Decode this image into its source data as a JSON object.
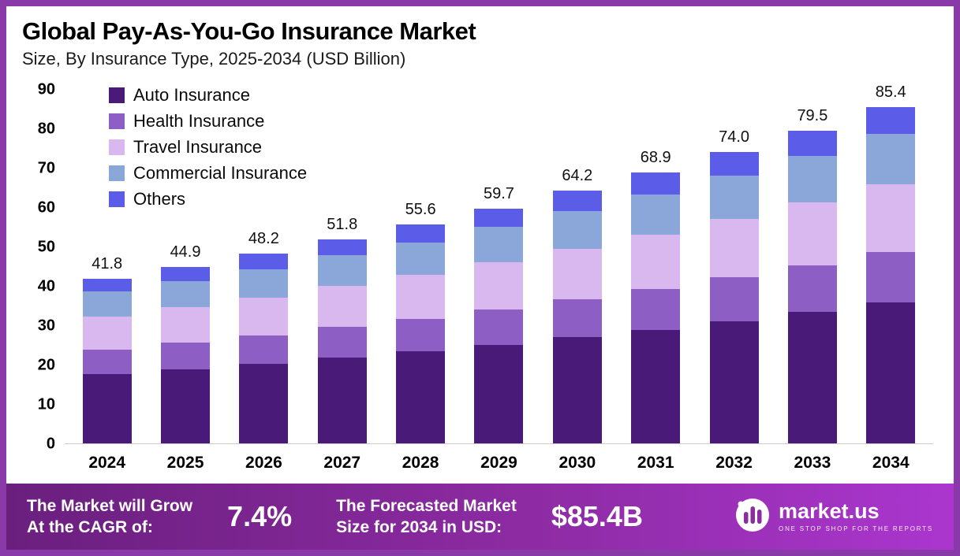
{
  "header": {
    "title": "Global Pay-As-You-Go Insurance Market",
    "subtitle": "Size, By Insurance Type, 2025-2034 (USD Billion)"
  },
  "chart_data": {
    "type": "bar",
    "stacked": true,
    "title": "Global Pay-As-You-Go Insurance Market Size, By Insurance Type, 2025-2034 (USD Billion)",
    "categories": [
      "2024",
      "2025",
      "2026",
      "2027",
      "2028",
      "2029",
      "2030",
      "2031",
      "2032",
      "2033",
      "2034"
    ],
    "series": [
      {
        "name": "Auto Insurance",
        "color": "#491a77",
        "values": [
          17.6,
          18.9,
          20.2,
          21.8,
          23.4,
          25.1,
          27.0,
          28.9,
          31.1,
          33.4,
          35.9
        ]
      },
      {
        "name": "Health Insurance",
        "color": "#8d5fc4",
        "values": [
          6.3,
          6.7,
          7.2,
          7.8,
          8.3,
          9.0,
          9.6,
          10.3,
          11.1,
          11.9,
          12.8
        ]
      },
      {
        "name": "Travel Insurance",
        "color": "#d9b8f0",
        "values": [
          8.4,
          9.0,
          9.6,
          10.4,
          11.1,
          11.9,
          12.8,
          13.8,
          14.8,
          15.9,
          17.1
        ]
      },
      {
        "name": "Commercial Insurance",
        "color": "#8ba7d9",
        "values": [
          6.3,
          6.7,
          7.2,
          7.8,
          8.3,
          9.0,
          9.6,
          10.3,
          11.1,
          11.9,
          12.8
        ]
      },
      {
        "name": "Others",
        "color": "#5b5de8",
        "values": [
          3.2,
          3.6,
          4.0,
          4.0,
          4.5,
          4.7,
          5.2,
          5.6,
          5.9,
          6.4,
          6.8
        ]
      }
    ],
    "totals": [
      41.8,
      44.9,
      48.2,
      51.8,
      55.6,
      59.7,
      64.2,
      68.9,
      74.0,
      79.5,
      85.4
    ],
    "xlabel": "",
    "ylabel": "",
    "ylim": [
      0,
      90
    ],
    "yticks": [
      0,
      10,
      20,
      30,
      40,
      50,
      60,
      70,
      80,
      90
    ],
    "grid": false,
    "legend_position": "top-left"
  },
  "footer": {
    "cagr_label": "The Market will Grow\nAt the CAGR of:",
    "cagr_value": "7.4%",
    "forecast_label": "The Forecasted Market\nSize for 2034 in USD:",
    "forecast_value": "$85.4B",
    "brand": {
      "name": "market.us",
      "tagline": "ONE STOP SHOP FOR THE REPORTS"
    }
  },
  "colors": {
    "frame_border": "#8a3aa8",
    "banner_gradient_start": "#6a1f7e",
    "banner_gradient_end": "#ab36cf"
  }
}
